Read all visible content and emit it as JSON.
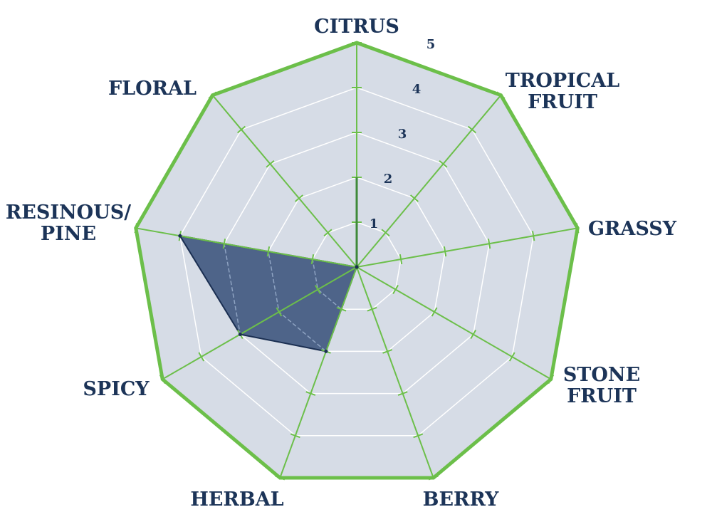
{
  "chart_data": {
    "type": "radar",
    "categories": [
      "CITRUS",
      "TROPICAL FRUIT",
      "GRASSY",
      "STONE FRUIT",
      "BERRY",
      "HERBAL",
      "SPICY",
      "RESINOUS/ PINE",
      "FLORAL"
    ],
    "category_lines": [
      [
        "CITRUS"
      ],
      [
        "TROPICAL",
        "FRUIT"
      ],
      [
        "GRASSY"
      ],
      [
        "STONE",
        "FRUIT"
      ],
      [
        "BERRY"
      ],
      [
        "HERBAL"
      ],
      [
        "SPICY"
      ],
      [
        "RESINOUS/",
        "PINE"
      ],
      [
        "FLORAL"
      ]
    ],
    "values": [
      0,
      0,
      0,
      0,
      0,
      2,
      3,
      4,
      0
    ],
    "rlim": [
      0,
      5
    ],
    "tick_labels": [
      "1",
      "2",
      "3",
      "4",
      "5"
    ],
    "grid": true,
    "colors": {
      "background": "#d6dce6",
      "grid": "#ffffff",
      "axis": "#6cbf4a",
      "fill": "#4e6489",
      "outline": "#1b2f52",
      "label": "#1c3458"
    }
  }
}
